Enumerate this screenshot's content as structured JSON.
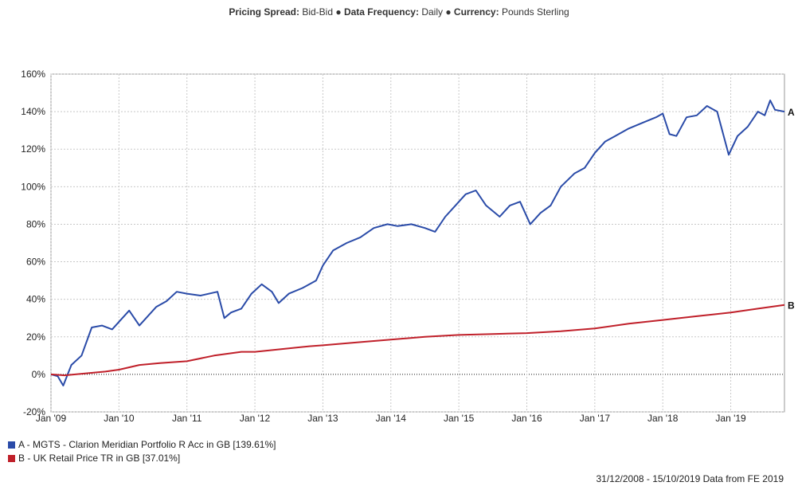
{
  "header": {
    "items": [
      {
        "label": "Pricing Spread:",
        "value": "Bid-Bid"
      },
      {
        "label": "Data Frequency:",
        "value": "Daily"
      },
      {
        "label": "Currency:",
        "value": "Pounds Sterling"
      }
    ],
    "separator": "●"
  },
  "footer": {
    "text": "31/12/2008 - 15/10/2019 Data from FE 2019"
  },
  "chart_data": {
    "type": "line",
    "title": "",
    "xlabel": "",
    "ylabel": "",
    "xlim": [
      2009.0,
      2019.79
    ],
    "ylim": [
      -20,
      160
    ],
    "y_ticks": [
      -20,
      0,
      20,
      40,
      60,
      80,
      100,
      120,
      140,
      160
    ],
    "y_tick_format": "%",
    "x_ticks": [
      {
        "label": "Jan '09",
        "x": 2009.0
      },
      {
        "label": "Jan '10",
        "x": 2010.0
      },
      {
        "label": "Jan '11",
        "x": 2011.0
      },
      {
        "label": "Jan '12",
        "x": 2012.0
      },
      {
        "label": "Jan '13",
        "x": 2013.0
      },
      {
        "label": "Jan '14",
        "x": 2014.0
      },
      {
        "label": "Jan '15",
        "x": 2015.0
      },
      {
        "label": "Jan '16",
        "x": 2016.0
      },
      {
        "label": "Jan '17",
        "x": 2017.0
      },
      {
        "label": "Jan '18",
        "x": 2018.0
      },
      {
        "label": "Jan '19",
        "x": 2019.0
      }
    ],
    "grid": true,
    "zero_line": "dotted",
    "legend_position": "bottom-left",
    "series": [
      {
        "name": "A - MGTS - Clarion Meridian Portfolio R Acc in GB [139.61%]",
        "end_label": "A",
        "color": "#2a4ba8",
        "x": [
          2009.0,
          2009.1,
          2009.18,
          2009.3,
          2009.45,
          2009.6,
          2009.75,
          2009.9,
          2010.0,
          2010.15,
          2010.3,
          2010.4,
          2010.55,
          2010.7,
          2010.85,
          2011.0,
          2011.2,
          2011.45,
          2011.55,
          2011.65,
          2011.8,
          2011.95,
          2012.1,
          2012.25,
          2012.35,
          2012.5,
          2012.7,
          2012.9,
          2013.0,
          2013.15,
          2013.35,
          2013.55,
          2013.75,
          2013.95,
          2014.1,
          2014.3,
          2014.5,
          2014.65,
          2014.8,
          2014.95,
          2015.1,
          2015.25,
          2015.4,
          2015.6,
          2015.75,
          2015.9,
          2016.05,
          2016.2,
          2016.35,
          2016.5,
          2016.7,
          2016.85,
          2017.0,
          2017.15,
          2017.3,
          2017.5,
          2017.7,
          2017.9,
          2018.0,
          2018.1,
          2018.2,
          2018.35,
          2018.5,
          2018.65,
          2018.8,
          2018.97,
          2019.1,
          2019.25,
          2019.4,
          2019.5,
          2019.58,
          2019.65,
          2019.79
        ],
        "y": [
          0,
          -1,
          -6,
          5,
          10,
          25,
          26,
          24,
          28,
          34,
          26,
          30,
          36,
          39,
          44,
          43,
          42,
          44,
          30,
          33,
          35,
          43,
          48,
          44,
          38,
          43,
          46,
          50,
          58,
          66,
          70,
          73,
          78,
          80,
          79,
          80,
          78,
          76,
          84,
          90,
          96,
          98,
          90,
          84,
          90,
          92,
          80,
          86,
          90,
          100,
          107,
          110,
          118,
          124,
          127,
          131,
          134,
          137,
          139,
          128,
          127,
          137,
          138,
          143,
          140,
          117,
          127,
          132,
          140,
          138,
          146,
          141,
          140
        ]
      },
      {
        "name": "B - UK Retail Price TR in GB [37.01%]",
        "end_label": "B",
        "color": "#c0202a",
        "x": [
          2009.0,
          2009.2,
          2009.5,
          2009.8,
          2010.0,
          2010.3,
          2010.6,
          2011.0,
          2011.4,
          2011.8,
          2012.0,
          2012.4,
          2012.8,
          2013.0,
          2013.5,
          2014.0,
          2014.5,
          2015.0,
          2015.5,
          2016.0,
          2016.5,
          2017.0,
          2017.5,
          2018.0,
          2018.5,
          2019.0,
          2019.4,
          2019.79
        ],
        "y": [
          0,
          -0.5,
          0.5,
          1.5,
          2.5,
          5,
          6,
          7,
          10,
          12,
          12,
          13.5,
          15,
          15.5,
          17,
          18.5,
          20,
          21,
          21.5,
          22,
          23,
          24.5,
          27,
          29,
          31,
          33,
          35,
          37
        ]
      }
    ]
  }
}
